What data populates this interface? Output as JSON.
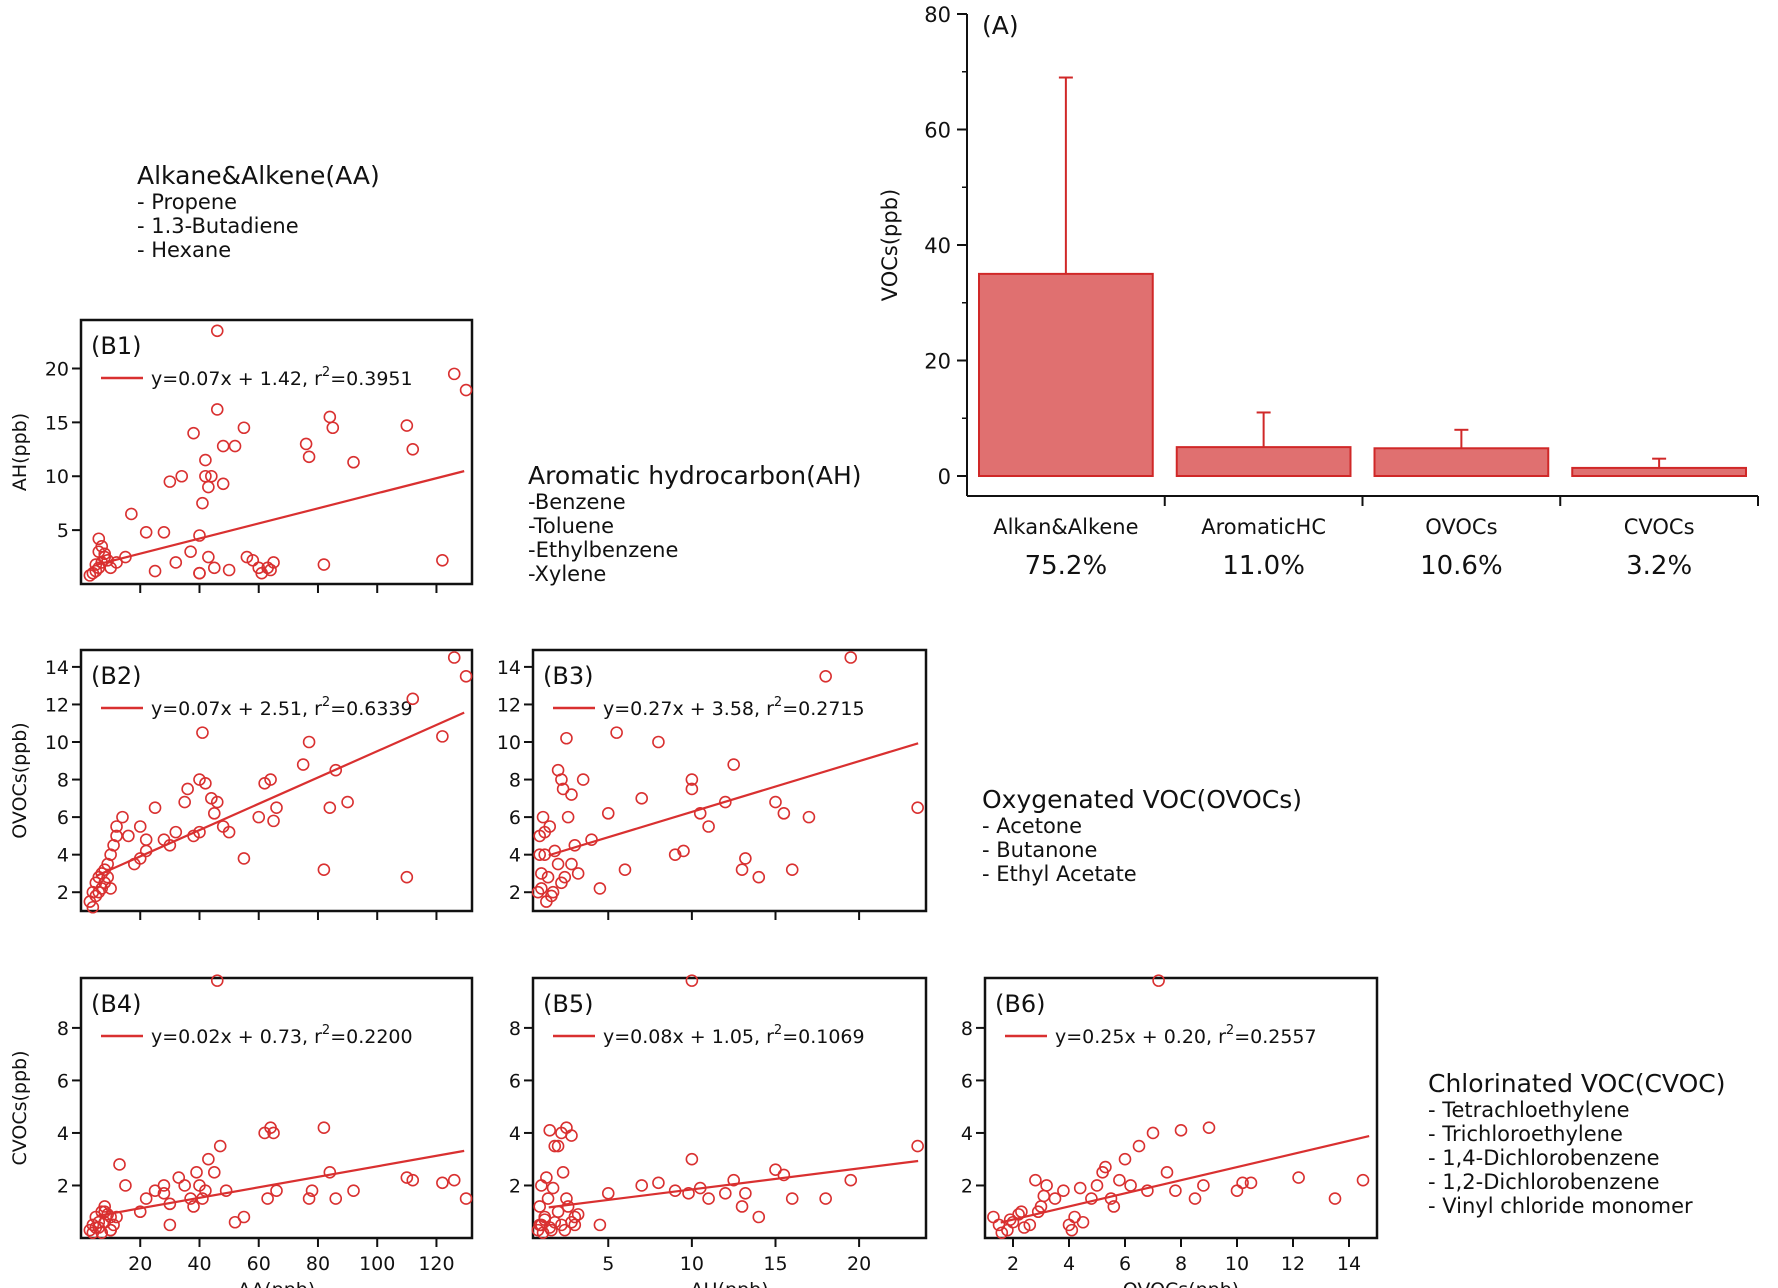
{
  "figure": {
    "legend_blocks": {
      "aa": {
        "title": "Alkane&Alkene(AA)",
        "items": [
          "- Propene",
          "- 1.3-Butadiene",
          "- Hexane"
        ]
      },
      "ah": {
        "title": "Aromatic hydrocarbon(AH)",
        "items": [
          "-Benzene",
          "-Toluene",
          "-Ethylbenzene",
          "-Xylene"
        ]
      },
      "ovoc": {
        "title": "Oxygenated VOC(OVOCs)",
        "items": [
          "- Acetone",
          "- Butanone",
          "- Ethyl Acetate"
        ]
      },
      "cvoc": {
        "title": "Chlorinated VOC(CVOC)",
        "items": [
          "- Tetrachloethylene",
          "- Trichloroethylene",
          "- 1,4-Dichlorobenzene",
          "- 1,2-Dichlorobenzene",
          "- Vinyl chloride monomer"
        ]
      }
    },
    "colors": {
      "marker": "#d93030",
      "bar_fill": "#e07070",
      "bar_edge": "#d02828",
      "axis": "#111111"
    }
  },
  "chart_data": [
    {
      "id": "A",
      "type": "bar",
      "panel_label": "(A)",
      "categories": [
        "Alkan&Alkene",
        "AromaticHC",
        "OVOCs",
        "CVOCs"
      ],
      "percent_labels": [
        "75.2%",
        "11.0%",
        "10.6%",
        "3.2%"
      ],
      "values": [
        35,
        5,
        4.8,
        1.4
      ],
      "error_upper": [
        69,
        11,
        8,
        3
      ],
      "ylabel": "VOCs(ppb)",
      "ylim": [
        0,
        80
      ],
      "yticks": [
        0,
        20,
        40,
        60,
        80
      ]
    },
    {
      "id": "B1",
      "type": "scatter",
      "panel_label": "(B1)",
      "equation": "y=0.07x + 1.42, r",
      "r2_value": "=0.3951",
      "fit": {
        "slope": 0.07,
        "intercept": 1.42
      },
      "xlim": [
        0,
        132
      ],
      "ylim": [
        0,
        24.5
      ],
      "xticks": [
        20,
        40,
        60,
        80,
        100,
        120
      ],
      "show_xticklabels": false,
      "yticks": [
        5,
        10,
        15,
        20
      ],
      "xlabel": "",
      "ylabel": "AH(ppb)",
      "x": [
        3,
        4,
        5,
        6,
        7,
        8,
        5,
        6,
        9,
        10,
        12,
        15,
        6,
        7,
        8,
        17,
        22,
        25,
        28,
        30,
        32,
        34,
        37,
        38,
        40,
        41,
        42,
        43,
        44,
        45,
        40,
        46,
        48,
        50,
        52,
        55,
        56,
        58,
        60,
        61,
        63,
        64,
        65,
        76,
        77,
        82,
        84,
        85,
        92,
        110,
        112,
        122,
        126,
        130,
        40,
        42,
        43,
        46,
        48
      ],
      "y": [
        0.8,
        1.0,
        1.2,
        1.5,
        2.0,
        2.5,
        1.8,
        3.0,
        2.2,
        1.5,
        2.0,
        2.5,
        4.2,
        3.5,
        2.8,
        6.5,
        4.8,
        1.2,
        4.8,
        9.5,
        2.0,
        10.0,
        3.0,
        14.0,
        4.5,
        7.5,
        10.0,
        2.5,
        10.0,
        1.5,
        1.0,
        23.5,
        12.8,
        1.3,
        12.8,
        14.5,
        2.5,
        2.2,
        1.5,
        1.0,
        1.5,
        1.3,
        2.0,
        13.0,
        11.8,
        1.8,
        15.5,
        14.5,
        11.3,
        14.7,
        12.5,
        2.2,
        19.5,
        18.0,
        1.0,
        11.5,
        9.0,
        16.2,
        9.3
      ]
    },
    {
      "id": "B2",
      "type": "scatter",
      "panel_label": "(B2)",
      "equation": "y=0.07x + 2.51, r",
      "r2_value": "=0.6339",
      "fit": {
        "slope": 0.07,
        "intercept": 2.51
      },
      "xlim": [
        0,
        132
      ],
      "ylim": [
        1,
        14.9
      ],
      "xticks": [
        20,
        40,
        60,
        80,
        100,
        120
      ],
      "show_xticklabels": false,
      "yticks": [
        2,
        4,
        6,
        8,
        10,
        12,
        14
      ],
      "xlabel": "",
      "ylabel": "OVOCs(ppb)",
      "x": [
        3,
        4,
        5,
        6,
        7,
        8,
        9,
        10,
        11,
        4,
        5,
        6,
        7,
        8,
        9,
        12,
        14,
        16,
        18,
        20,
        22,
        25,
        28,
        30,
        32,
        35,
        36,
        38,
        40,
        40,
        41,
        42,
        44,
        45,
        46,
        48,
        50,
        55,
        60,
        62,
        64,
        65,
        66,
        75,
        77,
        82,
        84,
        86,
        90,
        110,
        112,
        122,
        126,
        130,
        10,
        12,
        20,
        22
      ],
      "y": [
        1.5,
        2.0,
        2.5,
        2.0,
        3.0,
        2.5,
        3.5,
        4.0,
        4.5,
        1.2,
        1.8,
        2.8,
        2.2,
        3.2,
        2.8,
        5.5,
        6.0,
        5.0,
        3.5,
        5.5,
        4.2,
        6.5,
        4.8,
        4.5,
        5.2,
        6.8,
        7.5,
        5.0,
        5.2,
        8.0,
        10.5,
        7.8,
        7.0,
        6.2,
        6.8,
        5.5,
        5.2,
        3.8,
        6.0,
        7.8,
        8.0,
        5.8,
        6.5,
        8.8,
        10.0,
        3.2,
        6.5,
        8.5,
        6.8,
        2.8,
        12.3,
        10.3,
        14.5,
        13.5,
        2.2,
        5.0,
        3.8,
        4.8
      ]
    },
    {
      "id": "B3",
      "type": "scatter",
      "panel_label": "(B3)",
      "equation": "y=0.27x + 3.58, r",
      "r2_value": "=0.2715",
      "fit": {
        "slope": 0.27,
        "intercept": 3.58
      },
      "xlim": [
        0.5,
        24
      ],
      "ylim": [
        1,
        14.9
      ],
      "xticks": [
        5,
        10,
        15,
        20
      ],
      "show_xticklabels": false,
      "yticks": [
        2,
        4,
        6,
        8,
        10,
        12,
        14
      ],
      "xlabel": "",
      "ylabel": "",
      "x": [
        0.8,
        1.0,
        1.2,
        0.9,
        1.1,
        1.5,
        1.8,
        2.0,
        1.0,
        1.3,
        1.6,
        0.9,
        1.2,
        1.4,
        1.7,
        2.2,
        2.5,
        2.8,
        2.0,
        2.3,
        2.6,
        3.0,
        2.2,
        2.4,
        2.8,
        3.2,
        3.5,
        4.0,
        4.5,
        5.0,
        5.5,
        6.0,
        7.0,
        8.0,
        9.0,
        9.5,
        10.0,
        10.0,
        10.5,
        11,
        12,
        12.5,
        13,
        13.2,
        14,
        15,
        15.5,
        16,
        17,
        18,
        19.5,
        23.5
      ],
      "y": [
        2.0,
        3.0,
        4.0,
        5.0,
        6.0,
        5.5,
        4.2,
        3.5,
        2.2,
        1.5,
        1.8,
        4.0,
        5.2,
        2.8,
        2.0,
        8.0,
        10.2,
        7.2,
        8.5,
        7.5,
        6.0,
        4.5,
        2.5,
        2.8,
        3.5,
        3.0,
        8.0,
        4.8,
        2.2,
        6.2,
        10.5,
        3.2,
        7.0,
        10.0,
        4.0,
        4.2,
        8.0,
        7.5,
        6.2,
        5.5,
        6.8,
        8.8,
        3.2,
        3.8,
        2.8,
        6.8,
        6.2,
        3.2,
        6.0,
        13.5,
        14.5,
        6.5
      ]
    },
    {
      "id": "B4",
      "type": "scatter",
      "panel_label": "(B4)",
      "equation": "y=0.02x + 0.73, r",
      "r2_value": "=0.2200",
      "fit": {
        "slope": 0.02,
        "intercept": 0.73
      },
      "xlim": [
        0,
        132
      ],
      "ylim": [
        0,
        9.9
      ],
      "xticks": [
        20,
        40,
        60,
        80,
        100,
        120
      ],
      "show_xticklabels": true,
      "yticks": [
        2,
        4,
        6,
        8
      ],
      "xlabel": "AA(ppb)",
      "ylabel": "CVOCs(ppb)",
      "x": [
        3,
        4,
        5,
        6,
        7,
        8,
        9,
        10,
        11,
        12,
        4,
        5,
        6,
        7,
        8,
        10,
        13,
        15,
        20,
        22,
        25,
        28,
        30,
        33,
        35,
        37,
        38,
        39,
        40,
        41,
        42,
        43,
        45,
        46,
        47,
        49,
        52,
        55,
        62,
        63,
        64,
        65,
        66,
        77,
        78,
        82,
        84,
        86,
        92,
        110,
        112,
        122,
        126,
        130,
        8,
        10,
        28,
        30
      ],
      "y": [
        0.3,
        0.5,
        0.8,
        0.4,
        0.2,
        0.6,
        0.9,
        0.3,
        0.5,
        0.8,
        0.2,
        0.4,
        0.6,
        1.0,
        1.2,
        0.3,
        2.8,
        2.0,
        1.0,
        1.5,
        1.8,
        2.0,
        0.5,
        2.3,
        2.0,
        1.5,
        1.2,
        2.5,
        2.0,
        1.5,
        1.8,
        3.0,
        2.5,
        9.8,
        3.5,
        1.8,
        0.6,
        0.8,
        4.0,
        1.5,
        4.2,
        4.0,
        1.8,
        1.5,
        1.8,
        4.2,
        2.5,
        1.5,
        1.8,
        2.3,
        2.2,
        2.1,
        2.2,
        1.5,
        1.0,
        0.8,
        1.7,
        1.3
      ]
    },
    {
      "id": "B5",
      "type": "scatter",
      "panel_label": "(B5)",
      "equation": "y=0.08x + 1.05, r",
      "r2_value": "=0.1069",
      "fit": {
        "slope": 0.08,
        "intercept": 1.05
      },
      "xlim": [
        0.5,
        24
      ],
      "ylim": [
        0,
        9.9
      ],
      "xticks": [
        5,
        10,
        15,
        20
      ],
      "show_xticklabels": true,
      "yticks": [
        2,
        4,
        6,
        8
      ],
      "xlabel": "AH(ppb)",
      "ylabel": "",
      "x": [
        0.8,
        1.0,
        1.2,
        0.9,
        1.1,
        1.5,
        1.8,
        2.0,
        1.0,
        1.3,
        1.6,
        0.9,
        1.2,
        1.4,
        1.7,
        2.2,
        2.5,
        2.8,
        2.0,
        2.3,
        2.6,
        3.0,
        2.2,
        2.4,
        2.8,
        3.2,
        1.5,
        1.8,
        2.5,
        3.0,
        4.5,
        5.0,
        7.0,
        8.0,
        9.0,
        9.8,
        10.0,
        10.0,
        10.5,
        11,
        12,
        12.5,
        13,
        13.2,
        14,
        15,
        15.5,
        16,
        18,
        19.5,
        23.5
      ],
      "y": [
        0.3,
        0.5,
        0.8,
        1.2,
        0.2,
        0.4,
        0.6,
        1.0,
        2.0,
        2.3,
        0.3,
        0.5,
        0.7,
        1.5,
        1.9,
        4.0,
        4.2,
        3.9,
        3.5,
        2.5,
        1.2,
        0.8,
        0.5,
        0.3,
        0.6,
        0.9,
        4.1,
        3.5,
        1.5,
        0.5,
        0.5,
        1.7,
        2.0,
        2.1,
        1.8,
        1.7,
        3.0,
        9.8,
        1.9,
        1.5,
        1.7,
        2.2,
        1.2,
        1.7,
        0.8,
        2.6,
        2.4,
        1.5,
        1.5,
        2.2,
        3.5
      ]
    },
    {
      "id": "B6",
      "type": "scatter",
      "panel_label": "(B6)",
      "equation": "y=0.25x + 0.20, r",
      "r2_value": "=0.2557",
      "fit": {
        "slope": 0.25,
        "intercept": 0.2
      },
      "xlim": [
        1,
        15
      ],
      "ylim": [
        0,
        9.9
      ],
      "xticks": [
        2,
        4,
        6,
        8,
        10,
        12,
        14
      ],
      "show_xticklabels": true,
      "yticks": [
        2,
        4,
        6,
        8
      ],
      "xlabel": "OVOCs(ppb)",
      "ylabel": "",
      "x": [
        1.3,
        1.5,
        1.8,
        2.0,
        2.2,
        2.4,
        1.6,
        1.9,
        2.3,
        2.6,
        3.0,
        3.2,
        3.5,
        2.8,
        3.8,
        4.0,
        4.2,
        4.5,
        4.8,
        5.0,
        5.2,
        5.5,
        5.8,
        6.0,
        6.2,
        6.5,
        6.8,
        7.0,
        7.2,
        7.5,
        7.8,
        8.0,
        8.5,
        8.8,
        9.0,
        10.0,
        10.2,
        10.5,
        12.2,
        13.5,
        14.5,
        2.9,
        3.1,
        4.1,
        4.4,
        5.3,
        5.6
      ],
      "y": [
        0.8,
        0.5,
        0.3,
        0.6,
        0.9,
        0.4,
        0.2,
        0.7,
        1.0,
        0.5,
        1.2,
        2.0,
        1.5,
        2.2,
        1.8,
        0.5,
        0.8,
        0.6,
        1.5,
        2.0,
        2.5,
        1.5,
        2.2,
        3.0,
        2.0,
        3.5,
        1.8,
        4.0,
        9.8,
        2.5,
        1.8,
        4.1,
        1.5,
        2.0,
        4.2,
        1.8,
        2.1,
        2.1,
        2.3,
        1.5,
        2.2,
        1.0,
        1.6,
        0.3,
        1.9,
        2.7,
        1.2
      ]
    }
  ]
}
